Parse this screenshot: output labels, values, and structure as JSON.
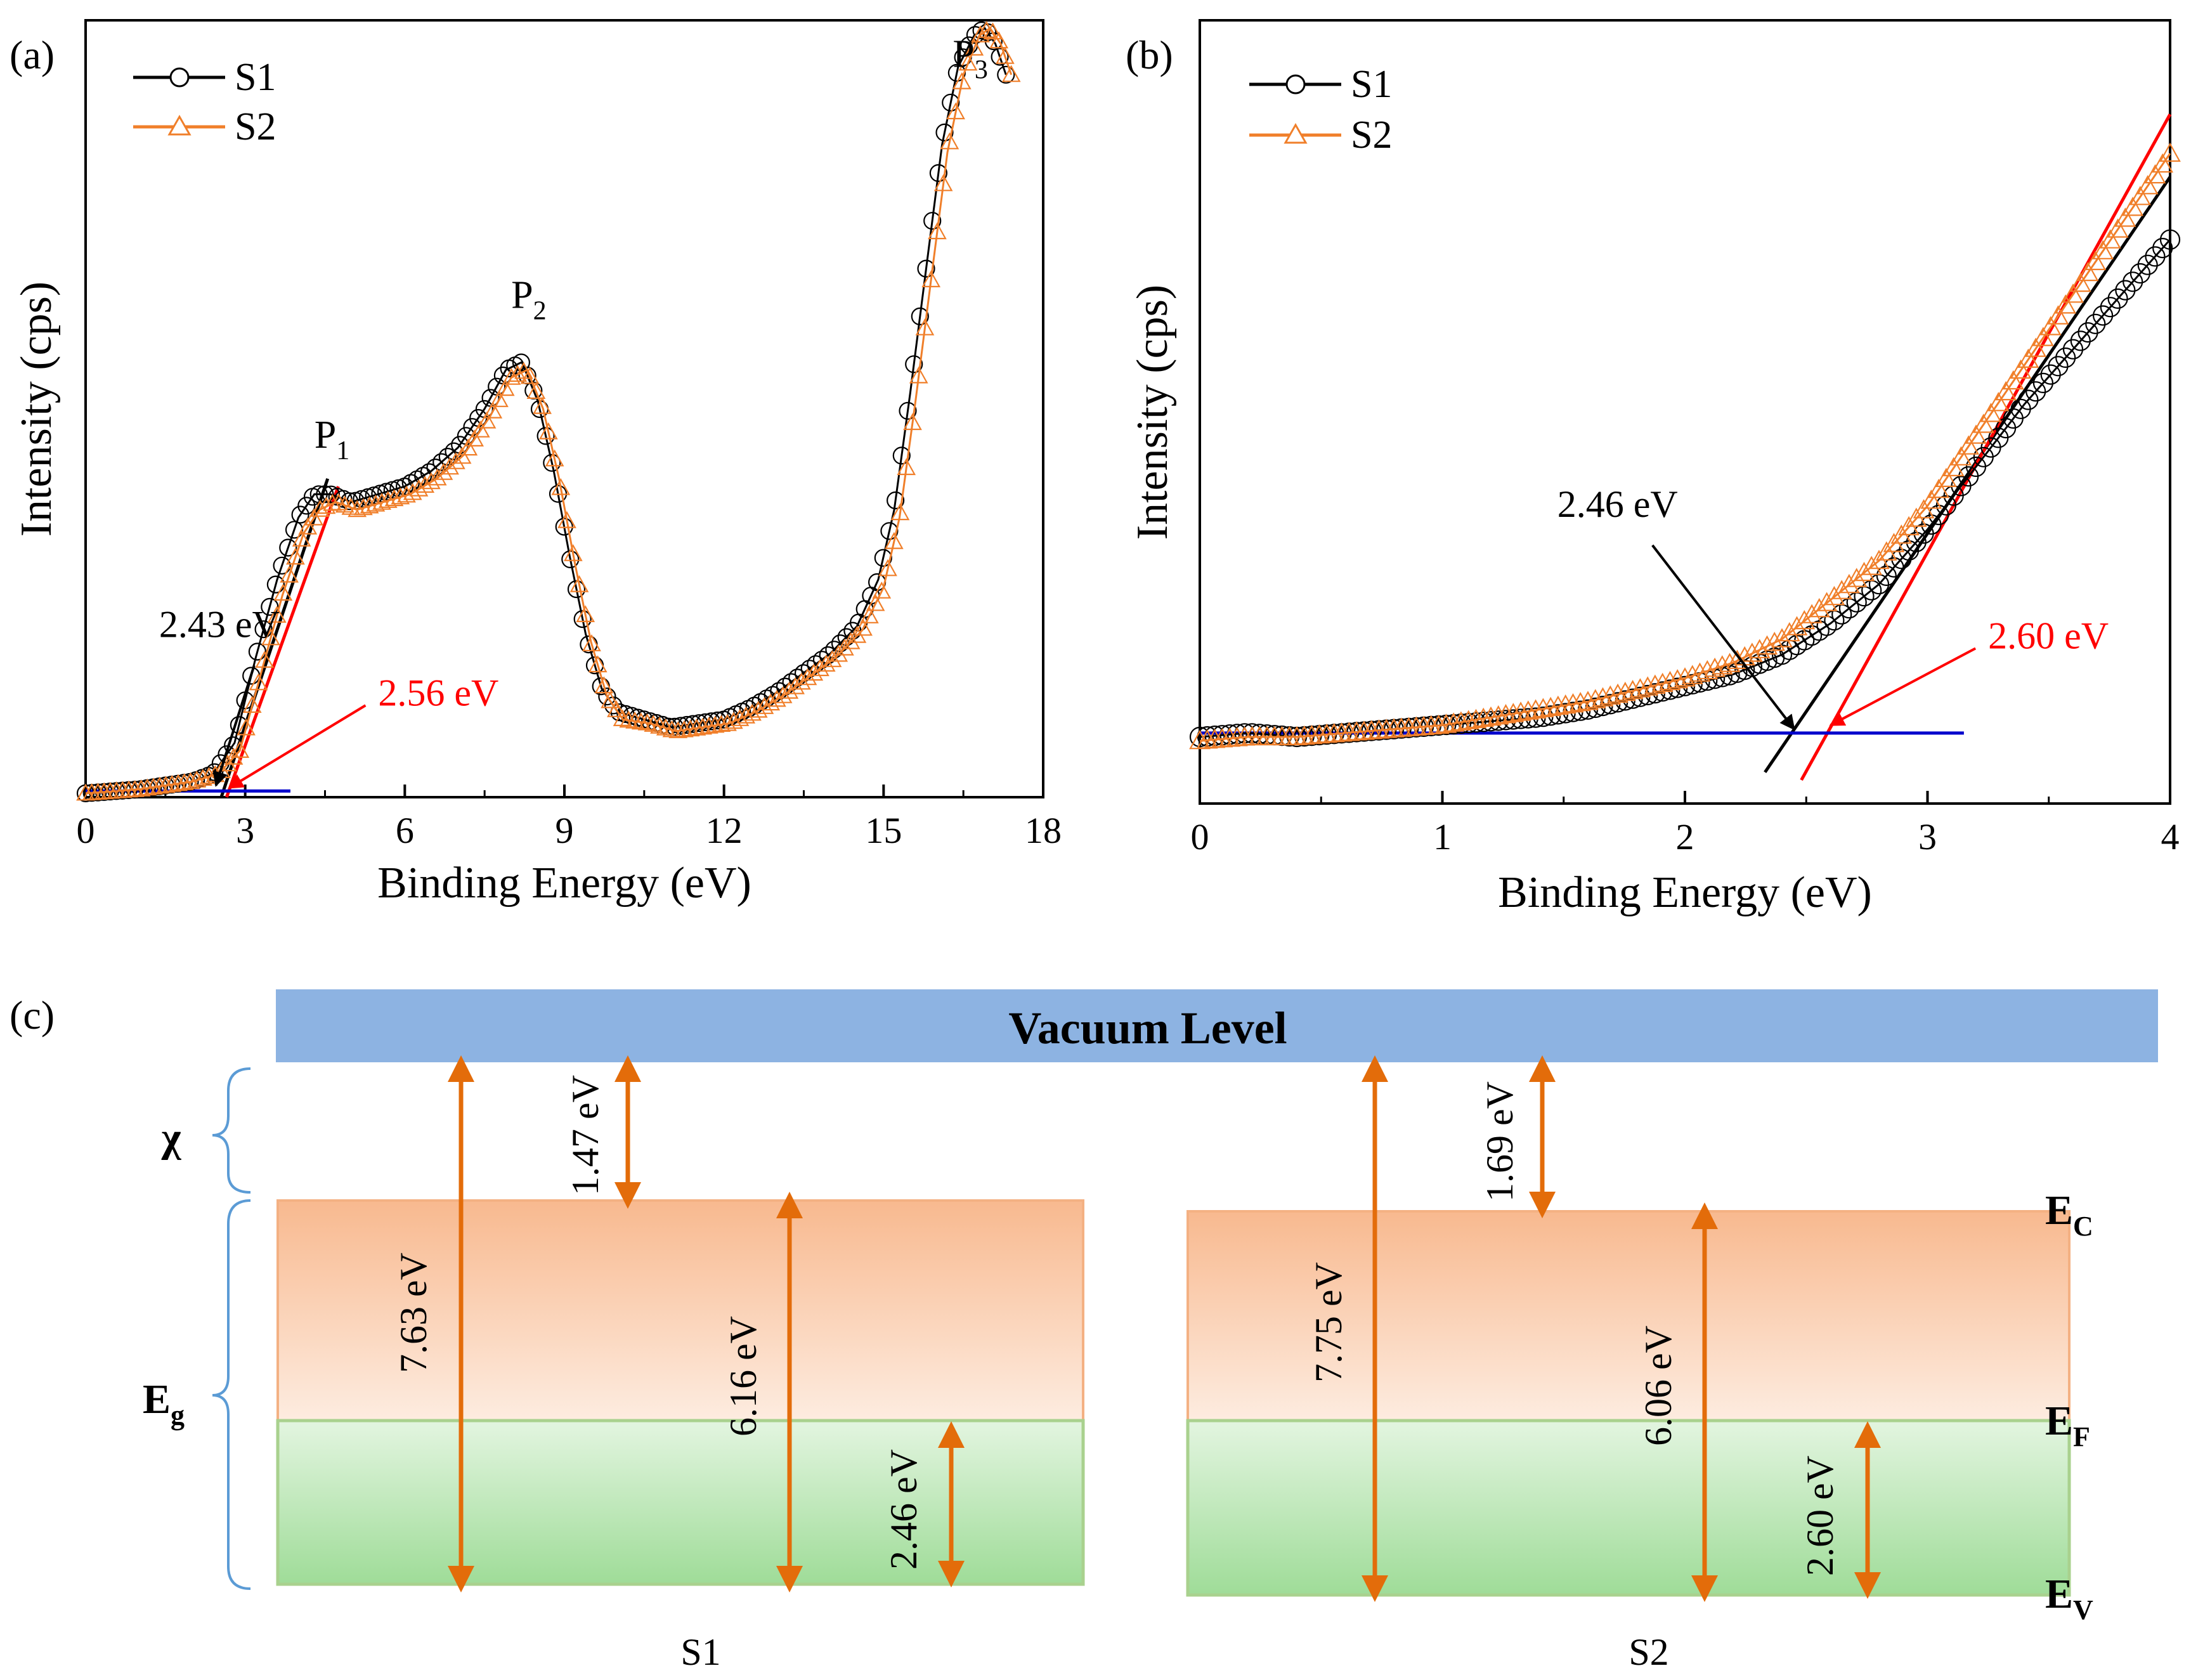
{
  "chart_data": [
    {
      "panel": "(a)",
      "type": "line",
      "xlabel": "Binding Energy (eV)",
      "ylabel": "Intensity (cps)",
      "xlim": [
        0,
        18
      ],
      "xticks": [
        0,
        3,
        6,
        9,
        12,
        15,
        18
      ],
      "ylim": [
        0,
        100
      ],
      "legend_position": "top-left",
      "series": [
        {
          "name": "S1",
          "color": "#000000",
          "marker": "circle",
          "x": [
            0,
            1,
            2,
            2.4,
            2.8,
            3.2,
            3.6,
            4.0,
            4.3,
            4.6,
            5.0,
            5.5,
            6.0,
            6.5,
            7.0,
            7.5,
            7.9,
            8.2,
            8.5,
            8.8,
            9.1,
            9.4,
            9.7,
            10.0,
            10.5,
            11.0,
            11.5,
            12.0,
            12.5,
            13.0,
            13.5,
            14.0,
            14.5,
            14.9,
            15.2,
            15.5,
            15.8,
            16.1,
            16.4,
            16.7,
            16.9,
            17.1,
            17.3
          ],
          "y": [
            0.5,
            1,
            2,
            3,
            7,
            18,
            28,
            36,
            39,
            39,
            38,
            39,
            40,
            42,
            45,
            50,
            55,
            56,
            51,
            42,
            31,
            21,
            14,
            11,
            10,
            9,
            9.5,
            10,
            11.5,
            13.5,
            16,
            18.5,
            22,
            28,
            37,
            52,
            68,
            84,
            94,
            98,
            99,
            97,
            93
          ]
        },
        {
          "name": "S2",
          "color": "#f07f2a",
          "marker": "triangle",
          "x": [
            0,
            1,
            2,
            2.5,
            2.9,
            3.3,
            3.7,
            4.1,
            4.4,
            4.7,
            5.1,
            5.6,
            6.1,
            6.6,
            7.1,
            7.6,
            8.0,
            8.3,
            8.6,
            8.9,
            9.2,
            9.5,
            9.8,
            10.1,
            10.6,
            11.1,
            11.6,
            12.1,
            12.6,
            13.1,
            13.6,
            14.1,
            14.6,
            15.0,
            15.3,
            15.6,
            15.9,
            16.2,
            16.5,
            16.8,
            17.0,
            17.2,
            17.4
          ],
          "y": [
            0.5,
            1,
            2,
            3,
            6,
            16,
            26,
            34,
            37,
            38,
            37,
            38,
            39,
            41,
            44,
            49,
            54,
            55,
            50,
            41,
            30,
            20,
            13,
            10,
            9.5,
            8.5,
            9,
            9.5,
            11,
            13,
            15.5,
            18,
            21.5,
            27,
            36,
            51,
            67,
            83,
            93,
            98,
            99,
            97,
            93
          ]
        }
      ],
      "fit_lines": [
        {
          "color": "#000000",
          "x": [
            2.55,
            4.55
          ],
          "y": [
            0,
            41
          ]
        },
        {
          "color": "#ff0000",
          "x": [
            2.65,
            4.75
          ],
          "y": [
            0,
            40
          ]
        },
        {
          "color": "#0000cc",
          "x": [
            0,
            3.85
          ],
          "y": [
            0.8,
            0.8
          ]
        }
      ],
      "peak_labels": [
        {
          "main": "P",
          "sub": "1",
          "x": 4.3,
          "y": 45
        },
        {
          "main": "P",
          "sub": "2",
          "x": 8.0,
          "y": 63
        },
        {
          "main": "P",
          "sub": "3",
          "x": 16.3,
          "y": 94
        }
      ],
      "annotations": [
        {
          "text": "2.43 eV",
          "color": "#000000",
          "text_x": 1.5,
          "text_y": 19,
          "arrow_to": [
            2.45,
            1.5
          ]
        },
        {
          "text": "2.56 eV",
          "color": "#ff0000",
          "text_x": 5.5,
          "text_y": 11,
          "arrow_to": [
            2.7,
            1.2
          ]
        }
      ]
    },
    {
      "panel": "(b)",
      "type": "line",
      "xlabel": "Binding Energy (eV)",
      "ylabel": "Intensity (cps)",
      "xlim": [
        0,
        4
      ],
      "xticks": [
        0,
        1,
        2,
        3,
        4
      ],
      "ylim": [
        0,
        100
      ],
      "legend_position": "top-left",
      "series": [
        {
          "name": "S1",
          "color": "#000000",
          "marker": "circle",
          "x": [
            0,
            0.2,
            0.4,
            0.6,
            0.8,
            1.0,
            1.2,
            1.4,
            1.6,
            1.8,
            2.0,
            2.2,
            2.4,
            2.6,
            2.8,
            3.0,
            3.2,
            3.4,
            3.6,
            3.8,
            4.0
          ],
          "y": [
            8.5,
            9,
            8.5,
            9,
            9.5,
            10,
            10.5,
            11,
            12,
            13.5,
            15,
            16.5,
            19,
            23,
            28,
            35,
            43,
            51,
            58,
            65,
            72
          ]
        },
        {
          "name": "S2",
          "color": "#f07f2a",
          "marker": "triangle",
          "x": [
            0,
            0.2,
            0.4,
            0.6,
            0.8,
            1.0,
            1.2,
            1.4,
            1.6,
            1.8,
            2.0,
            2.2,
            2.4,
            2.6,
            2.8,
            3.0,
            3.2,
            3.4,
            3.6,
            3.8,
            4.0
          ],
          "y": [
            8,
            8.5,
            8.5,
            9,
            9.5,
            10,
            11,
            12,
            13,
            14.5,
            16,
            18,
            21,
            26,
            31,
            38,
            47,
            56,
            65,
            74,
            83
          ]
        }
      ],
      "fit_lines": [
        {
          "color": "#000000",
          "x": [
            2.33,
            4.0
          ],
          "y": [
            4,
            80
          ]
        },
        {
          "color": "#ff0000",
          "x": [
            2.48,
            4.0
          ],
          "y": [
            3,
            88
          ]
        },
        {
          "color": "#0000cc",
          "x": [
            0,
            3.15
          ],
          "y": [
            9,
            9
          ]
        }
      ],
      "annotations": [
        {
          "text": "2.46 eV",
          "color": "#000000",
          "text_x": 1.5,
          "text_y": 35,
          "arrow_to": [
            2.45,
            9.5
          ]
        },
        {
          "text": "2.60 eV",
          "color": "#ff0000",
          "text_x": 3.25,
          "text_y": 19,
          "arrow_to": [
            2.6,
            10
          ]
        }
      ]
    }
  ],
  "diagram": {
    "panel": "(c)",
    "vacuum_level": "Vacuum Level",
    "labels": {
      "chi": "χ",
      "eg_main": "E",
      "eg_sub": "g",
      "ec_main": "E",
      "ec_sub": "C",
      "ef_main": "E",
      "ef_sub": "F",
      "ev_main": "E",
      "ev_sub": "V"
    },
    "samples": [
      {
        "name": "S1",
        "total": "7.63 eV",
        "chi": "1.47 eV",
        "cb_to_vb": "6.16 eV",
        "fermi_gap": "2.46 eV"
      },
      {
        "name": "S2",
        "total": "7.75 eV",
        "chi": "1.69 eV",
        "cb_to_vb": "6.06 eV",
        "fermi_gap": "2.60 eV"
      }
    ]
  },
  "colors": {
    "s1": "#000000",
    "s2": "#f07f2a",
    "fit_red": "#ff0000",
    "baseline": "#0000cc",
    "vacuum": "#8db3e2",
    "arrow": "#e36c0a",
    "bracket": "#5b9bd5",
    "cb_edge": "#f4b183",
    "vb_edge": "#a9d18e"
  }
}
